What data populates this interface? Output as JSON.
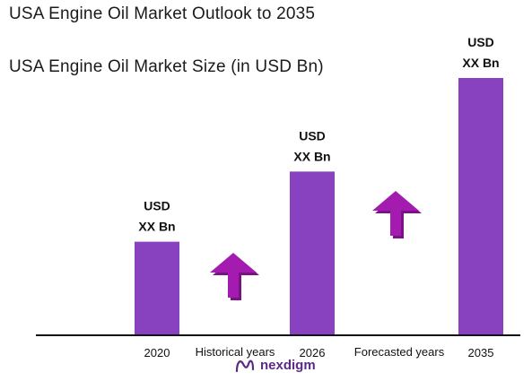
{
  "header": {
    "title": "USA Engine Oil Market Outlook to 2035",
    "subtitle": "USA Engine Oil Market Size (in USD Bn)"
  },
  "chart_data": {
    "type": "bar",
    "title": "USA Engine Oil Market Outlook to 2035",
    "subtitle": "USA Engine Oil Market Size (in USD Bn)",
    "categories": [
      "2020",
      "2026",
      "2035"
    ],
    "values": [
      1.0,
      1.75,
      2.75
    ],
    "value_labels": [
      {
        "line1": "USD",
        "line2": "XX Bn"
      },
      {
        "line1": "USD",
        "line2": "XX Bn"
      },
      {
        "line1": "USD",
        "line2": "XX Bn"
      }
    ],
    "period_labels": [
      "Historical years",
      "Forecasted years"
    ],
    "ylim": [
      0,
      2.75
    ],
    "grid": false,
    "legend": "none",
    "colors": {
      "bar": "#8842c0",
      "arrow": "#a41bb0",
      "arrow_dark": "#7a1185",
      "axis": "#111111"
    }
  },
  "brand": {
    "name": "nexdigm",
    "icon": "nexdigm-logo-icon"
  }
}
